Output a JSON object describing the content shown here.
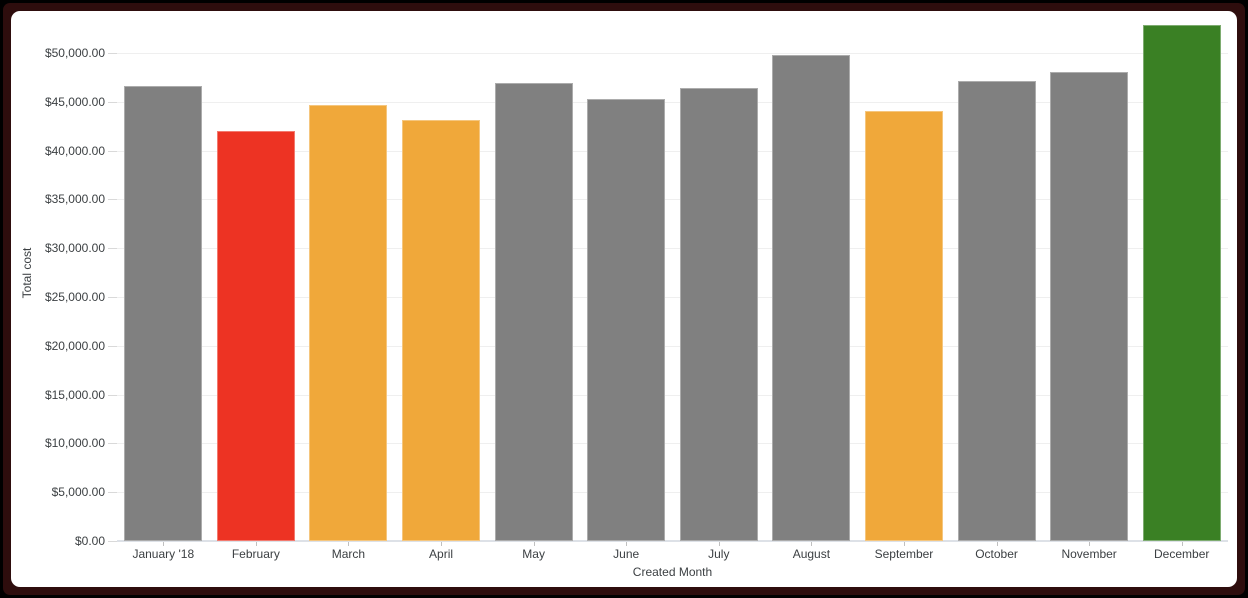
{
  "chart_data": {
    "type": "bar",
    "title": "",
    "xlabel": "Created Month",
    "ylabel": "Total cost",
    "categories": [
      "January '18",
      "February",
      "March",
      "April",
      "May",
      "June",
      "July",
      "August",
      "September",
      "October",
      "November",
      "December"
    ],
    "values": [
      46600,
      42000,
      44700,
      43100,
      46900,
      45300,
      46400,
      49800,
      44100,
      47100,
      48100,
      52900
    ],
    "bar_colors": [
      "#808080",
      "#ED3323",
      "#F0A83A",
      "#F0A83A",
      "#808080",
      "#808080",
      "#808080",
      "#808080",
      "#F0A83A",
      "#808080",
      "#808080",
      "#3A8024"
    ],
    "ylim": [
      0,
      50000
    ],
    "y_ticks": [
      0,
      5000,
      10000,
      15000,
      20000,
      25000,
      30000,
      35000,
      40000,
      45000,
      50000
    ],
    "y_tick_labels": [
      "$0.00",
      "$5,000.00",
      "$10,000.00",
      "$15,000.00",
      "$20,000.00",
      "$25,000.00",
      "$30,000.00",
      "$35,000.00",
      "$40,000.00",
      "$45,000.00",
      "$50,000.00"
    ],
    "grid": true,
    "legend_position": "none"
  },
  "frame": {
    "border_color": "#2e0d0d",
    "background_color": "#ffffff"
  }
}
